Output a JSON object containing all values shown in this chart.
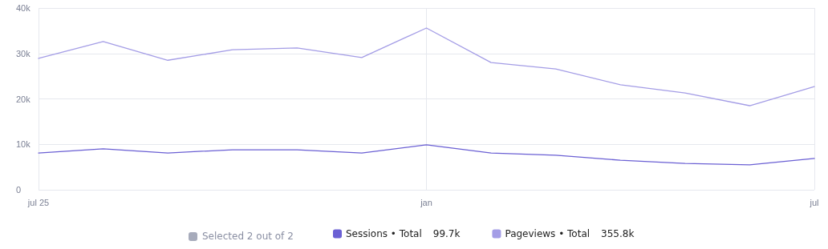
{
  "chart_data": {
    "type": "line",
    "categories": [
      "jul 25",
      null,
      null,
      null,
      null,
      null,
      "jan",
      null,
      null,
      null,
      null,
      null,
      "jul"
    ],
    "series": [
      {
        "name": "Sessions • Total",
        "color": "#6b60d4",
        "values": [
          8.1,
          9.0,
          8.1,
          8.8,
          8.8,
          8.1,
          9.9,
          8.1,
          7.6,
          6.5,
          5.8,
          5.5,
          6.9
        ]
      },
      {
        "name": "Pageviews • Total",
        "color": "#a49de6",
        "values": [
          28.9,
          32.6,
          28.5,
          30.8,
          31.2,
          29.1,
          35.6,
          28.0,
          26.6,
          23.1,
          21.3,
          18.5,
          22.7
        ]
      }
    ],
    "ylim": [
      0,
      40
    ],
    "yticks": [
      {
        "value": 0,
        "label": "0"
      },
      {
        "value": 10,
        "label": "10k"
      },
      {
        "value": 20,
        "label": "20k"
      },
      {
        "value": 30,
        "label": "30k"
      },
      {
        "value": 40,
        "label": "40k"
      }
    ],
    "grid": true,
    "legend": "bottom",
    "marker": "none",
    "line_style": "solid",
    "annotations": [
      "Selected 2 out of 2",
      "99.7k",
      "355.8k"
    ]
  }
}
